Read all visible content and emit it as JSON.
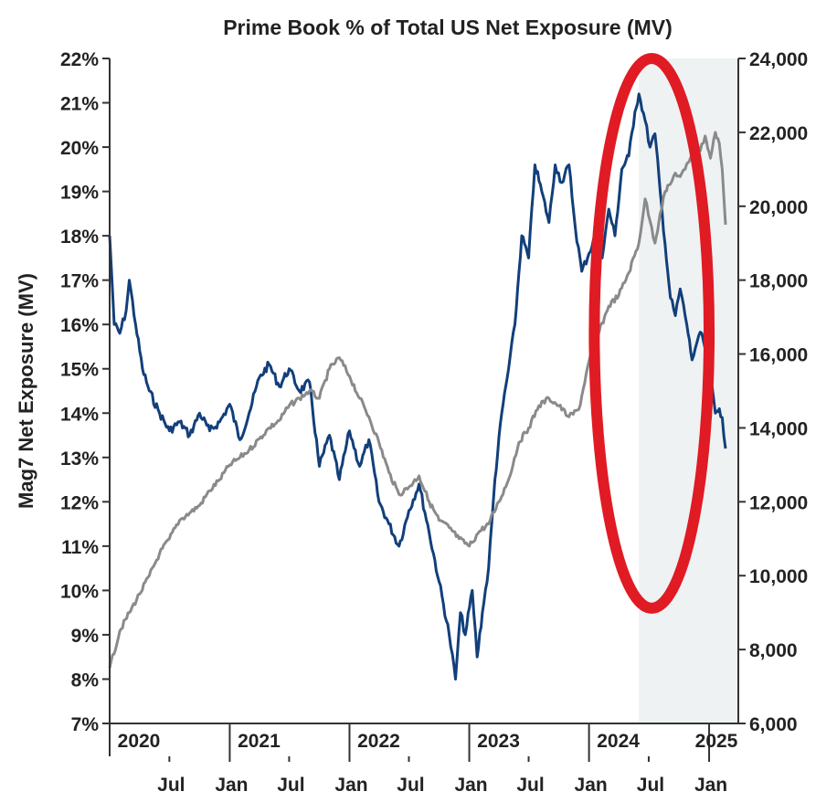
{
  "colors": {
    "mag7_series": "#123f7a",
    "index_series": "#8a8a8a",
    "shade": "#eef2f3",
    "highlight_ellipse": "#e01b24",
    "axis": "#333333"
  },
  "chart_data": {
    "type": "line",
    "title": "Prime Book % of Total US Net Exposure (MV)",
    "ylabel": "Mag7 Net Exposure (MV)",
    "y2label": "",
    "ylim": [
      7,
      22
    ],
    "y2lim": [
      6000,
      24000
    ],
    "y_ticks": [
      "7%",
      "8%",
      "9%",
      "10%",
      "11%",
      "12%",
      "13%",
      "14%",
      "15%",
      "16%",
      "17%",
      "18%",
      "19%",
      "20%",
      "21%",
      "22%"
    ],
    "y2_ticks": [
      "6,000",
      "8,000",
      "10,000",
      "12,000",
      "14,000",
      "16,000",
      "18,000",
      "20,000",
      "22,000",
      "24,000"
    ],
    "y2_tick_values": [
      6000,
      8000,
      10000,
      12000,
      14000,
      16000,
      18000,
      20000,
      22000,
      24000
    ],
    "x_range": [
      "2020-01-01",
      "2025-03-31"
    ],
    "x_year_labels": [
      {
        "label": "2020",
        "date": "2020-01-01"
      },
      {
        "label": "2021",
        "date": "2021-01-01"
      },
      {
        "label": "2022",
        "date": "2022-01-01"
      },
      {
        "label": "2023",
        "date": "2023-01-01"
      },
      {
        "label": "2024",
        "date": "2024-01-01"
      },
      {
        "label": "2025",
        "date": "2025-01-01"
      }
    ],
    "x_month_labels": [
      {
        "label": "Jul",
        "date": "2020-07-01"
      },
      {
        "label": "Jan",
        "date": "2021-01-01"
      },
      {
        "label": "Jul",
        "date": "2021-07-01"
      },
      {
        "label": "Jan",
        "date": "2022-01-01"
      },
      {
        "label": "Jul",
        "date": "2022-07-01"
      },
      {
        "label": "Jan",
        "date": "2023-01-01"
      },
      {
        "label": "Jul",
        "date": "2023-07-01"
      },
      {
        "label": "Jan",
        "date": "2024-01-01"
      },
      {
        "label": "Jul",
        "date": "2024-07-01"
      },
      {
        "label": "Jan",
        "date": "2025-01-01"
      }
    ],
    "shaded_region": [
      "2024-06-01",
      "2025-03-31"
    ],
    "grid": false,
    "legend": "none",
    "series": [
      {
        "axis": "left",
        "color": "#123f7a",
        "points": [
          [
            "2020-01-01",
            18.0
          ],
          [
            "2020-01-15",
            16.0
          ],
          [
            "2020-02-01",
            15.8
          ],
          [
            "2020-02-20",
            16.3
          ],
          [
            "2020-03-01",
            17.0
          ],
          [
            "2020-03-20",
            16.0
          ],
          [
            "2020-04-10",
            15.0
          ],
          [
            "2020-05-01",
            14.5
          ],
          [
            "2020-06-01",
            14.0
          ],
          [
            "2020-07-01",
            13.6
          ],
          [
            "2020-08-01",
            13.8
          ],
          [
            "2020-09-01",
            13.5
          ],
          [
            "2020-10-01",
            14.0
          ],
          [
            "2020-11-01",
            13.6
          ],
          [
            "2020-12-01",
            13.8
          ],
          [
            "2021-01-01",
            14.2
          ],
          [
            "2021-02-01",
            13.4
          ],
          [
            "2021-03-01",
            14.0
          ],
          [
            "2021-04-01",
            14.8
          ],
          [
            "2021-05-01",
            15.1
          ],
          [
            "2021-06-01",
            14.6
          ],
          [
            "2021-07-01",
            15.0
          ],
          [
            "2021-08-01",
            14.5
          ],
          [
            "2021-09-01",
            14.7
          ],
          [
            "2021-10-01",
            12.8
          ],
          [
            "2021-11-01",
            13.5
          ],
          [
            "2021-12-01",
            12.5
          ],
          [
            "2022-01-01",
            13.6
          ],
          [
            "2022-02-01",
            12.8
          ],
          [
            "2022-03-01",
            13.4
          ],
          [
            "2022-04-01",
            12.0
          ],
          [
            "2022-05-01",
            11.5
          ],
          [
            "2022-06-01",
            11.0
          ],
          [
            "2022-07-01",
            11.8
          ],
          [
            "2022-08-01",
            12.4
          ],
          [
            "2022-09-01",
            11.3
          ],
          [
            "2022-10-01",
            10.2
          ],
          [
            "2022-11-01",
            9.0
          ],
          [
            "2022-11-20",
            8.0
          ],
          [
            "2022-12-05",
            9.5
          ],
          [
            "2022-12-20",
            9.0
          ],
          [
            "2023-01-10",
            10.0
          ],
          [
            "2023-01-25",
            8.5
          ],
          [
            "2023-02-10",
            9.5
          ],
          [
            "2023-03-01",
            10.5
          ],
          [
            "2023-03-20",
            12.5
          ],
          [
            "2023-04-10",
            14.0
          ],
          [
            "2023-05-01",
            15.0
          ],
          [
            "2023-05-20",
            16.0
          ],
          [
            "2023-06-10",
            18.0
          ],
          [
            "2023-07-01",
            17.5
          ],
          [
            "2023-07-20",
            19.6
          ],
          [
            "2023-08-10",
            19.0
          ],
          [
            "2023-09-01",
            18.3
          ],
          [
            "2023-09-20",
            19.6
          ],
          [
            "2023-10-10",
            19.2
          ],
          [
            "2023-11-01",
            19.6
          ],
          [
            "2023-11-20",
            18.2
          ],
          [
            "2023-12-10",
            17.2
          ],
          [
            "2024-01-01",
            17.6
          ],
          [
            "2024-01-20",
            18.0
          ],
          [
            "2024-02-10",
            17.5
          ],
          [
            "2024-03-01",
            18.6
          ],
          [
            "2024-03-20",
            18.0
          ],
          [
            "2024-04-10",
            19.5
          ],
          [
            "2024-05-01",
            19.8
          ],
          [
            "2024-05-20",
            20.8
          ],
          [
            "2024-06-01",
            21.2
          ],
          [
            "2024-06-20",
            20.6
          ],
          [
            "2024-07-05",
            20.0
          ],
          [
            "2024-07-20",
            20.3
          ],
          [
            "2024-08-05",
            19.0
          ],
          [
            "2024-08-20",
            17.8
          ],
          [
            "2024-09-05",
            16.6
          ],
          [
            "2024-09-20",
            16.2
          ],
          [
            "2024-10-05",
            16.8
          ],
          [
            "2024-10-25",
            16.0
          ],
          [
            "2024-11-10",
            15.2
          ],
          [
            "2024-11-25",
            15.6
          ],
          [
            "2024-12-10",
            15.8
          ],
          [
            "2025-01-01",
            15.0
          ],
          [
            "2025-01-20",
            14.0
          ],
          [
            "2025-02-01",
            14.1
          ],
          [
            "2025-02-10",
            13.9
          ],
          [
            "2025-02-20",
            13.2
          ]
        ]
      },
      {
        "axis": "right",
        "color": "#8a8a8a",
        "points": [
          [
            "2020-01-01",
            7500
          ],
          [
            "2020-02-01",
            8500
          ],
          [
            "2020-03-01",
            9000
          ],
          [
            "2020-04-01",
            9500
          ],
          [
            "2020-05-01",
            10000
          ],
          [
            "2020-06-01",
            10600
          ],
          [
            "2020-07-01",
            11000
          ],
          [
            "2020-08-01",
            11500
          ],
          [
            "2020-09-01",
            11700
          ],
          [
            "2020-10-01",
            11900
          ],
          [
            "2020-11-01",
            12300
          ],
          [
            "2020-12-01",
            12600
          ],
          [
            "2021-01-01",
            13000
          ],
          [
            "2021-02-01",
            13200
          ],
          [
            "2021-03-01",
            13400
          ],
          [
            "2021-04-01",
            13700
          ],
          [
            "2021-05-01",
            14000
          ],
          [
            "2021-06-01",
            14200
          ],
          [
            "2021-07-01",
            14600
          ],
          [
            "2021-08-01",
            14800
          ],
          [
            "2021-09-01",
            15000
          ],
          [
            "2021-10-01",
            14800
          ],
          [
            "2021-11-01",
            15600
          ],
          [
            "2021-12-01",
            15900
          ],
          [
            "2022-01-01",
            15400
          ],
          [
            "2022-02-01",
            14800
          ],
          [
            "2022-03-01",
            14300
          ],
          [
            "2022-04-01",
            13600
          ],
          [
            "2022-05-01",
            12800
          ],
          [
            "2022-06-01",
            12200
          ],
          [
            "2022-07-01",
            12400
          ],
          [
            "2022-08-01",
            12700
          ],
          [
            "2022-09-01",
            12000
          ],
          [
            "2022-10-01",
            11500
          ],
          [
            "2022-11-01",
            11300
          ],
          [
            "2022-12-01",
            11000
          ],
          [
            "2023-01-01",
            10800
          ],
          [
            "2023-02-01",
            11200
          ],
          [
            "2023-03-01",
            11400
          ],
          [
            "2023-04-01",
            12000
          ],
          [
            "2023-05-01",
            12600
          ],
          [
            "2023-06-01",
            13600
          ],
          [
            "2023-07-01",
            14000
          ],
          [
            "2023-08-01",
            14600
          ],
          [
            "2023-09-01",
            14800
          ],
          [
            "2023-10-01",
            14600
          ],
          [
            "2023-11-01",
            14300
          ],
          [
            "2023-12-01",
            14500
          ],
          [
            "2024-01-01",
            15800
          ],
          [
            "2024-02-01",
            16600
          ],
          [
            "2024-03-01",
            17300
          ],
          [
            "2024-04-01",
            17600
          ],
          [
            "2024-05-01",
            18200
          ],
          [
            "2024-06-01",
            19000
          ],
          [
            "2024-06-20",
            20200
          ],
          [
            "2024-07-05",
            19600
          ],
          [
            "2024-07-20",
            19000
          ],
          [
            "2024-08-05",
            19800
          ],
          [
            "2024-08-20",
            20400
          ],
          [
            "2024-09-05",
            20600
          ],
          [
            "2024-09-20",
            20900
          ],
          [
            "2024-10-05",
            20800
          ],
          [
            "2024-10-20",
            21000
          ],
          [
            "2024-11-05",
            21300
          ],
          [
            "2024-11-20",
            21800
          ],
          [
            "2024-12-05",
            21500
          ],
          [
            "2024-12-20",
            21900
          ],
          [
            "2025-01-05",
            21300
          ],
          [
            "2025-01-20",
            22000
          ],
          [
            "2025-02-01",
            21700
          ],
          [
            "2025-02-10",
            21000
          ],
          [
            "2025-02-20",
            19500
          ]
        ]
      }
    ],
    "annotation": {
      "shape": "ellipse",
      "color": "#e01b24",
      "center": [
        "2024-07-10",
        15.8
      ],
      "radius_days": 175,
      "radius_y": 6.2
    }
  }
}
